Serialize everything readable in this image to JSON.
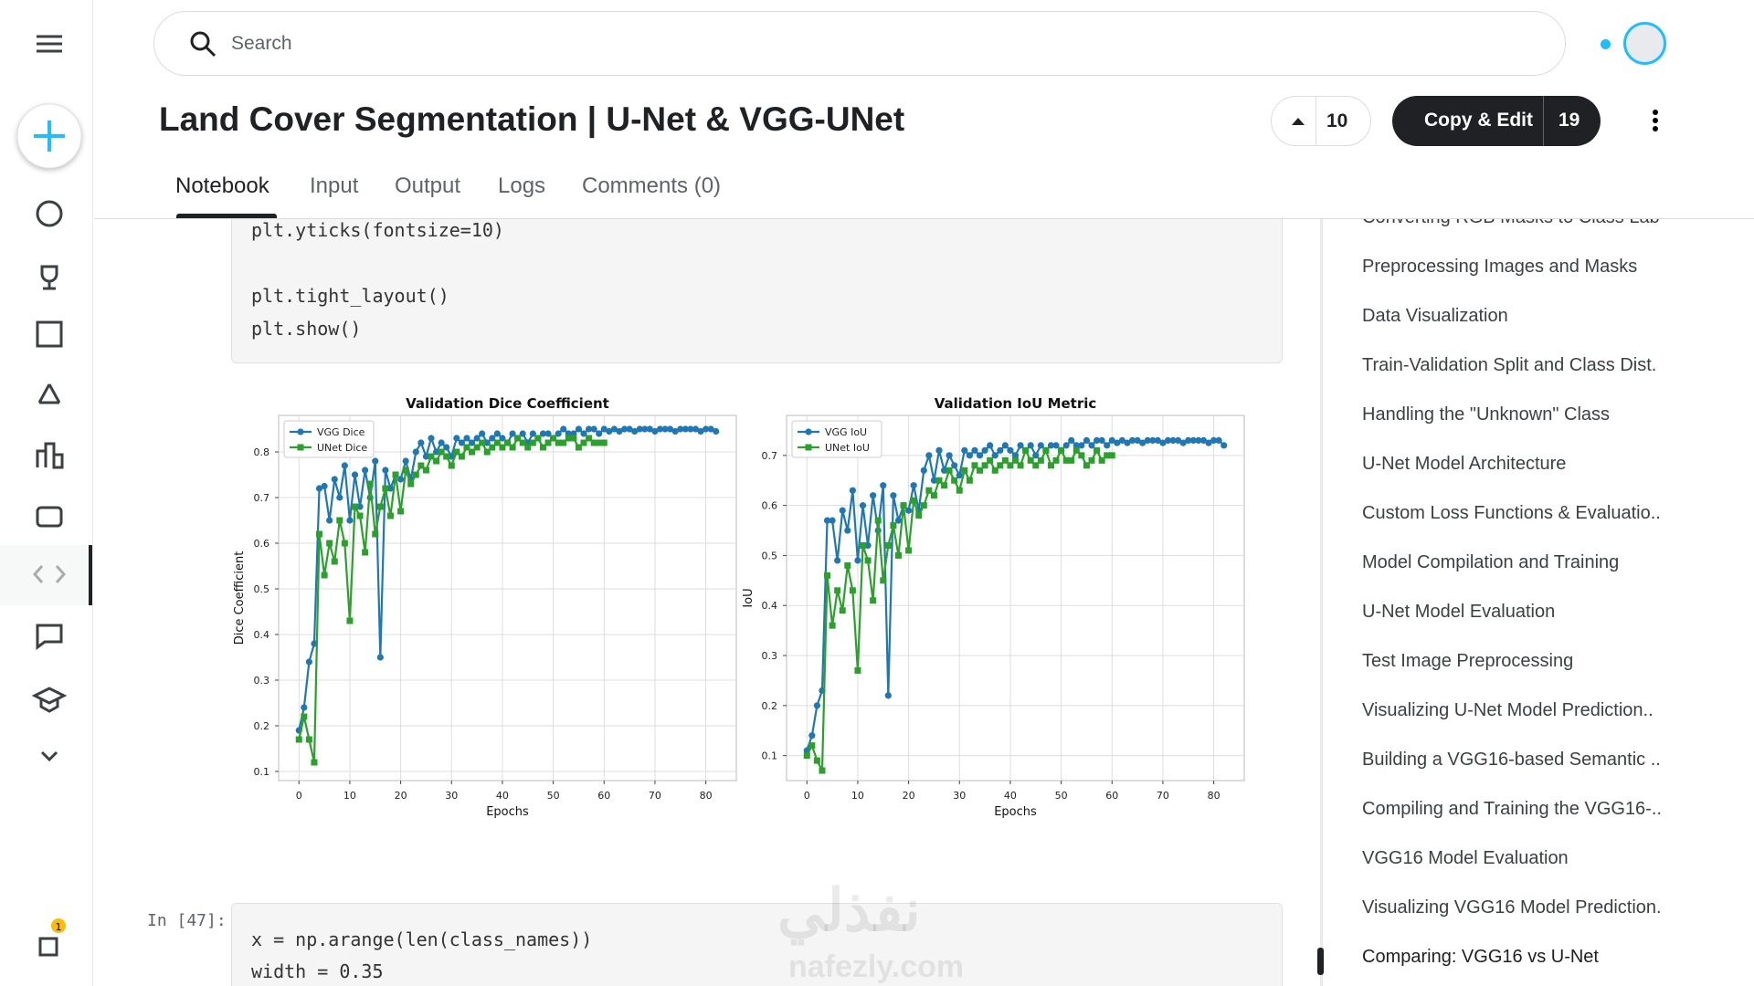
{
  "header": {
    "search": "Search",
    "title": "Land Cover Segmentation | U-Net & VGG-UNet",
    "votes": "10",
    "copy_edit": "Copy & Edit",
    "copies": "19"
  },
  "tabs": [
    "Notebook",
    "Input",
    "Output",
    "Logs",
    "Comments (0)"
  ],
  "cell1": {
    "lines": [
      "plt.yticks(fontsize=10)",
      "plt.tight_layout()",
      "plt.show()"
    ]
  },
  "cell2": {
    "prompt": "In [47]:",
    "lines": [
      "x = np.arange(len(class_names))",
      "width = 0.35"
    ]
  },
  "watermark": {
    "arabic": "نفذلي",
    "latin": "nafezly.com"
  },
  "badge": "1",
  "toc": [
    "Converting RGB Masks to Class Lab",
    "Preprocessing Images and Masks",
    "Data Visualization",
    "Train-Validation Split and Class Dist.",
    "Handling the \"Unknown\" Class",
    "U-Net Model Architecture",
    "Custom Loss Functions & Evaluatio..",
    "Model Compilation and Training",
    "U-Net Model Evaluation",
    "Test Image Preprocessing",
    "Visualizing U-Net Model Prediction..",
    "Building a VGG16-based Semantic ..",
    "Compiling and Training the VGG16-..",
    "VGG16 Model Evaluation",
    "Visualizing VGG16 Model Prediction.",
    "Comparing: VGG16 vs U-Net"
  ],
  "chart_data": [
    {
      "type": "line",
      "title": "Validation Dice Coefficient",
      "x_label": "Epochs",
      "y_label": "Dice Coefficient",
      "legend": "upper left",
      "grid": true,
      "x": [
        0,
        1,
        2,
        3,
        4,
        5,
        6,
        7,
        8,
        9,
        10,
        11,
        12,
        13,
        14,
        15,
        16,
        17,
        18,
        19,
        20,
        21,
        22,
        23,
        24,
        25,
        26,
        27,
        28,
        29,
        30,
        31,
        32,
        33,
        34,
        35,
        36,
        37,
        38,
        39,
        40,
        41,
        42,
        43,
        44,
        45,
        46,
        47,
        48,
        49,
        50,
        51,
        52,
        53,
        54,
        55,
        56,
        57,
        58,
        59,
        60,
        61,
        62,
        63,
        64,
        65,
        66,
        67,
        68,
        69,
        70,
        71,
        72,
        73,
        74,
        75,
        76,
        77,
        78,
        79,
        80,
        81,
        82
      ],
      "xlim": [
        -4,
        86
      ],
      "xticks": [
        0,
        10,
        20,
        30,
        40,
        50,
        60,
        70,
        80
      ],
      "ylim": [
        0.08,
        0.88
      ],
      "yticks": [
        0.1,
        0.2,
        0.3,
        0.4,
        0.5,
        0.6,
        0.7,
        0.8
      ],
      "series": [
        {
          "name": "VGG Dice",
          "color": "#1f77b4",
          "marker": "circle",
          "values": [
            0.19,
            0.24,
            0.34,
            0.38,
            0.72,
            0.725,
            0.65,
            0.74,
            0.7,
            0.77,
            0.65,
            0.75,
            0.68,
            0.76,
            0.7,
            0.78,
            0.35,
            0.76,
            0.72,
            0.75,
            0.74,
            0.78,
            0.74,
            0.8,
            0.82,
            0.79,
            0.83,
            0.8,
            0.82,
            0.81,
            0.79,
            0.83,
            0.82,
            0.83,
            0.82,
            0.83,
            0.84,
            0.82,
            0.83,
            0.84,
            0.83,
            0.82,
            0.84,
            0.83,
            0.84,
            0.82,
            0.84,
            0.83,
            0.84,
            0.84,
            0.83,
            0.84,
            0.85,
            0.84,
            0.84,
            0.85,
            0.84,
            0.85,
            0.85,
            0.84,
            0.85,
            0.845,
            0.85,
            0.845,
            0.85,
            0.85,
            0.845,
            0.85,
            0.85,
            0.85,
            0.845,
            0.85,
            0.85,
            0.85,
            0.845,
            0.85,
            0.85,
            0.85,
            0.85,
            0.845,
            0.85,
            0.85,
            0.845
          ]
        },
        {
          "name": "UNet Dice",
          "color": "#2ca02c",
          "marker": "square",
          "values": [
            0.17,
            0.22,
            0.17,
            0.12,
            0.62,
            0.53,
            0.6,
            0.56,
            0.65,
            0.6,
            0.43,
            0.68,
            0.66,
            0.58,
            0.73,
            0.62,
            0.68,
            0.72,
            0.66,
            0.75,
            0.67,
            0.76,
            0.73,
            0.75,
            0.77,
            0.76,
            0.79,
            0.78,
            0.8,
            0.79,
            0.77,
            0.8,
            0.79,
            0.81,
            0.8,
            0.81,
            0.82,
            0.8,
            0.81,
            0.82,
            0.81,
            0.82,
            0.81,
            0.83,
            0.82,
            0.81,
            0.82,
            0.83,
            0.81,
            0.82,
            0.83,
            0.82,
            0.82,
            0.83,
            0.83,
            0.81,
            0.82,
            0.83,
            0.82,
            0.82,
            0.82,
            null,
            null,
            null,
            null,
            null,
            null,
            null,
            null,
            null,
            null,
            null,
            null,
            null,
            null,
            null,
            null,
            null,
            null,
            null,
            null,
            null,
            null
          ]
        }
      ]
    },
    {
      "type": "line",
      "title": "Validation IoU Metric",
      "x_label": "Epochs",
      "y_label": "IoU",
      "legend": "upper left",
      "grid": true,
      "x": [
        0,
        1,
        2,
        3,
        4,
        5,
        6,
        7,
        8,
        9,
        10,
        11,
        12,
        13,
        14,
        15,
        16,
        17,
        18,
        19,
        20,
        21,
        22,
        23,
        24,
        25,
        26,
        27,
        28,
        29,
        30,
        31,
        32,
        33,
        34,
        35,
        36,
        37,
        38,
        39,
        40,
        41,
        42,
        43,
        44,
        45,
        46,
        47,
        48,
        49,
        50,
        51,
        52,
        53,
        54,
        55,
        56,
        57,
        58,
        59,
        60,
        61,
        62,
        63,
        64,
        65,
        66,
        67,
        68,
        69,
        70,
        71,
        72,
        73,
        74,
        75,
        76,
        77,
        78,
        79,
        80,
        81,
        82
      ],
      "xlim": [
        -4,
        86
      ],
      "xticks": [
        0,
        10,
        20,
        30,
        40,
        50,
        60,
        70,
        80
      ],
      "ylim": [
        0.05,
        0.78
      ],
      "yticks": [
        0.1,
        0.2,
        0.3,
        0.4,
        0.5,
        0.6,
        0.7
      ],
      "series": [
        {
          "name": "VGG IoU",
          "color": "#1f77b4",
          "marker": "circle",
          "values": [
            0.11,
            0.14,
            0.2,
            0.23,
            0.57,
            0.57,
            0.49,
            0.59,
            0.55,
            0.63,
            0.49,
            0.6,
            0.52,
            0.62,
            0.55,
            0.64,
            0.22,
            0.62,
            0.57,
            0.6,
            0.59,
            0.64,
            0.59,
            0.67,
            0.7,
            0.65,
            0.71,
            0.67,
            0.7,
            0.68,
            0.66,
            0.71,
            0.7,
            0.71,
            0.7,
            0.71,
            0.72,
            0.7,
            0.71,
            0.72,
            0.71,
            0.7,
            0.72,
            0.71,
            0.72,
            0.7,
            0.72,
            0.71,
            0.72,
            0.72,
            0.71,
            0.72,
            0.73,
            0.72,
            0.72,
            0.73,
            0.72,
            0.73,
            0.73,
            0.72,
            0.73,
            0.725,
            0.73,
            0.725,
            0.73,
            0.73,
            0.725,
            0.73,
            0.73,
            0.73,
            0.725,
            0.73,
            0.73,
            0.73,
            0.725,
            0.73,
            0.73,
            0.73,
            0.73,
            0.725,
            0.73,
            0.73,
            0.72
          ]
        },
        {
          "name": "UNet IoU",
          "color": "#2ca02c",
          "marker": "square",
          "values": [
            0.1,
            0.12,
            0.09,
            0.07,
            0.46,
            0.36,
            0.43,
            0.39,
            0.48,
            0.43,
            0.27,
            0.52,
            0.49,
            0.41,
            0.57,
            0.45,
            0.52,
            0.56,
            0.5,
            0.6,
            0.51,
            0.61,
            0.58,
            0.6,
            0.63,
            0.62,
            0.65,
            0.64,
            0.67,
            0.65,
            0.63,
            0.67,
            0.65,
            0.68,
            0.67,
            0.68,
            0.69,
            0.67,
            0.68,
            0.69,
            0.68,
            0.69,
            0.68,
            0.71,
            0.69,
            0.68,
            0.69,
            0.71,
            0.68,
            0.69,
            0.71,
            0.69,
            0.69,
            0.71,
            0.7,
            0.68,
            0.69,
            0.71,
            0.69,
            0.7,
            0.7,
            null,
            null,
            null,
            null,
            null,
            null,
            null,
            null,
            null,
            null,
            null,
            null,
            null,
            null,
            null,
            null,
            null,
            null,
            null,
            null,
            null,
            null
          ]
        }
      ]
    }
  ]
}
